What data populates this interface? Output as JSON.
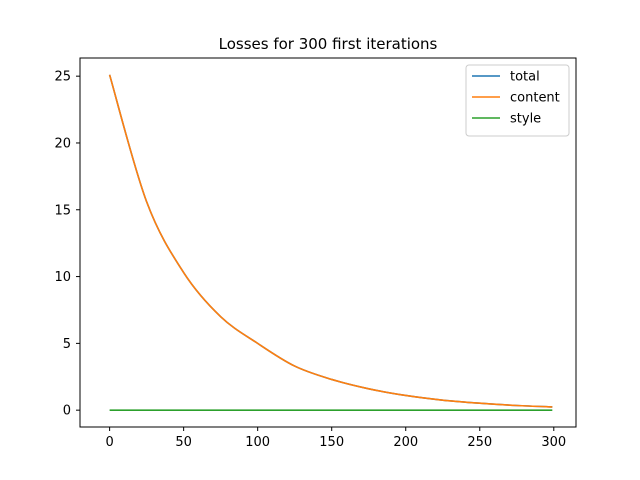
{
  "chart_data": {
    "type": "line",
    "title": "Losses for 300 first iterations",
    "xlabel": "",
    "ylabel": "",
    "xlim": [
      -20,
      315
    ],
    "ylim": [
      -1.26,
      26.36
    ],
    "xticks": [
      0,
      50,
      100,
      150,
      200,
      250,
      300
    ],
    "yticks": [
      0,
      5,
      10,
      15,
      20,
      25
    ],
    "legend_position": "top-right",
    "grid": false,
    "x": [
      0,
      25,
      50,
      75,
      100,
      125,
      150,
      175,
      200,
      225,
      250,
      275,
      299
    ],
    "series": [
      {
        "name": "total",
        "color": "#1f77b4",
        "values": [
          25.1,
          15.6,
          10.3,
          7.0,
          5.0,
          3.3,
          2.3,
          1.6,
          1.1,
          0.75,
          0.52,
          0.35,
          0.24
        ]
      },
      {
        "name": "content",
        "color": "#ff7f0e",
        "values": [
          25.1,
          15.6,
          10.3,
          7.0,
          5.0,
          3.3,
          2.3,
          1.6,
          1.1,
          0.75,
          0.52,
          0.35,
          0.24
        ]
      },
      {
        "name": "style",
        "color": "#2ca02c",
        "values": [
          0,
          0,
          0,
          0,
          0,
          0,
          0,
          0,
          0,
          0,
          0,
          0,
          0
        ]
      }
    ]
  }
}
